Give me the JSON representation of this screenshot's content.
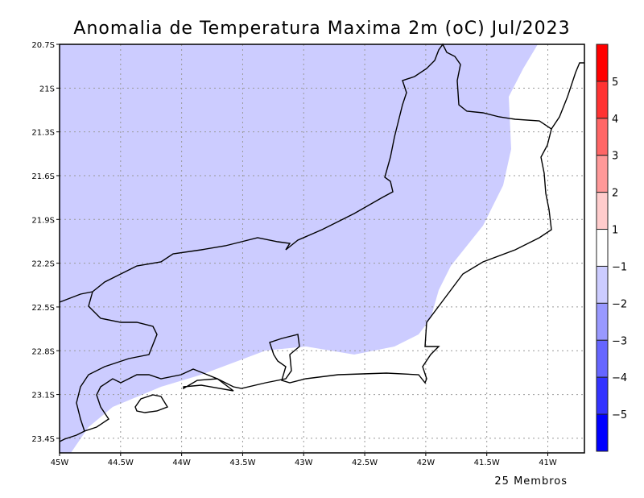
{
  "title": "Anomalia de Temperatura Maxima 2m (oC) Jul/2023",
  "footer": "25 Membros",
  "axes": {
    "lat_labels": [
      "20.7S",
      "21S",
      "21.3S",
      "21.6S",
      "21.9S",
      "22.2S",
      "22.5S",
      "22.8S",
      "23.1S",
      "23.4S"
    ],
    "lat_values": [
      -20.7,
      -21,
      -21.3,
      -21.6,
      -21.9,
      -22.2,
      -22.5,
      -22.8,
      -23.1,
      -23.4
    ],
    "lon_labels": [
      "45W",
      "44.5W",
      "44W",
      "43.5W",
      "43W",
      "42.5W",
      "42W",
      "41.5W",
      "41W"
    ],
    "lon_values": [
      -45,
      -44.5,
      -44,
      -43.5,
      -43,
      -42.5,
      -42,
      -41.5,
      -41
    ],
    "lon_range": [
      -45,
      -40.7
    ],
    "lat_range": [
      -23.5,
      -20.7
    ]
  },
  "colorbar": {
    "labels": [
      "5",
      "4",
      "3",
      "2",
      "1",
      "−1",
      "−2",
      "−3",
      "−4",
      "−5"
    ],
    "colors": [
      "#ff0000",
      "#ff3333",
      "#ff6666",
      "#ff9999",
      "#ffcccc",
      "#ffffff",
      "#ccccff",
      "#9999ff",
      "#6666ff",
      "#3333ff",
      "#0000ff"
    ]
  },
  "field": {
    "inland_class_color": "#ccccff",
    "inland_class_range": "-2 to -1",
    "coastal_class_color": "#ffffff",
    "coastal_class_range": "-1 to 1"
  }
}
